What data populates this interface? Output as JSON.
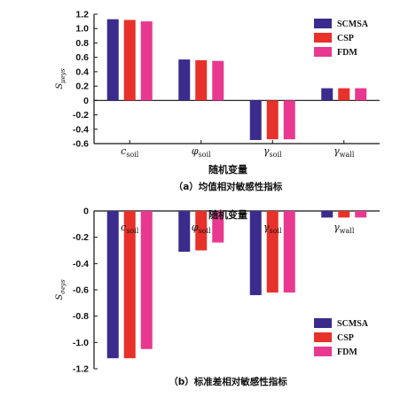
{
  "chart_data": [
    {
      "type": "bar",
      "ylabel": "S",
      "ylabel_sub": "μeys",
      "xlabel": "随机变量",
      "caption": "（a）均值相对敏感性指标",
      "categories": [
        {
          "base": "c",
          "sub": "soil"
        },
        {
          "base": "φ",
          "sub": "soil"
        },
        {
          "base": "γ",
          "sub": "soil"
        },
        {
          "base": "γ",
          "sub": "wall"
        }
      ],
      "series": [
        {
          "name": "SCMSA",
          "color": "#3b2b8c",
          "values": [
            1.13,
            0.57,
            -0.55,
            0.17
          ]
        },
        {
          "name": "CSP",
          "color": "#e8312a",
          "values": [
            1.12,
            0.56,
            -0.54,
            0.17
          ]
        },
        {
          "name": "FDM",
          "color": "#e8388f",
          "values": [
            1.1,
            0.55,
            -0.54,
            0.17
          ]
        }
      ],
      "ylim": [
        -0.6,
        1.2
      ],
      "yticks": [
        "-0.6",
        "-0.4",
        "-0.2",
        "0",
        "0.2",
        "0.4",
        "0.6",
        "0.8",
        "1.0",
        "1.2"
      ],
      "ytick_values": [
        -0.6,
        -0.4,
        -0.2,
        0,
        0.2,
        0.4,
        0.6,
        0.8,
        1.0,
        1.2
      ],
      "legend": "top-right",
      "grid": false
    },
    {
      "type": "bar",
      "ylabel": "S",
      "ylabel_sub": "σeys",
      "xlabel": "随机变量",
      "caption": "（b）标准差相对敏感性指标",
      "categories": [
        {
          "base": "c",
          "sub": "soil"
        },
        {
          "base": "φ",
          "sub": "soil"
        },
        {
          "base": "γ",
          "sub": "soil"
        },
        {
          "base": "γ",
          "sub": "wall"
        }
      ],
      "series": [
        {
          "name": "SCMSA",
          "color": "#3b2b8c",
          "values": [
            -1.12,
            -0.31,
            -0.64,
            -0.05
          ]
        },
        {
          "name": "CSP",
          "color": "#e8312a",
          "values": [
            -1.12,
            -0.3,
            -0.62,
            -0.05
          ]
        },
        {
          "name": "FDM",
          "color": "#e8388f",
          "values": [
            -1.05,
            -0.24,
            -0.62,
            -0.05
          ]
        }
      ],
      "ylim": [
        -1.2,
        0
      ],
      "yticks": [
        "-1.2",
        "-1.0",
        "-0.8",
        "-0.6",
        "-0.4",
        "-0.2",
        "0"
      ],
      "ytick_values": [
        -1.2,
        -1.0,
        -0.8,
        -0.6,
        -0.4,
        -0.2,
        0
      ],
      "legend": "bottom-right",
      "grid": false
    }
  ]
}
